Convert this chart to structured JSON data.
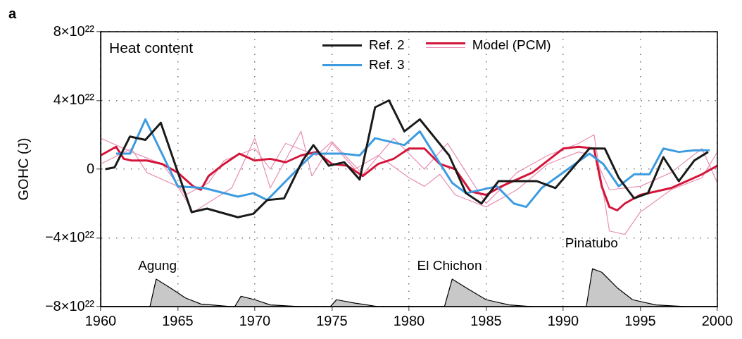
{
  "chart_data": {
    "type": "line",
    "ylabel": "GOHC (J)",
    "annotations": [
      "a",
      "Heat content",
      "Agung",
      "El Chichon",
      "Pinatubo"
    ],
    "xlim": [
      1960,
      2000
    ],
    "xticks": [
      1960,
      1965,
      1970,
      1975,
      1980,
      1985,
      1990,
      1995,
      2000
    ],
    "ylim": [
      -8e+22,
      8e+22
    ],
    "yticks": [
      {
        "value": -8e+22,
        "label": "−8×10²²"
      },
      {
        "value": -4e+22,
        "label": "−4×10²²"
      },
      {
        "value": 0,
        "label": "0"
      },
      {
        "value": 4e+22,
        "label": "4×10²²"
      },
      {
        "value": 8e+22,
        "label": "8×10²²"
      }
    ],
    "grid": true,
    "legend": "top",
    "marker": "none",
    "series": [
      {
        "type": "area",
        "color": "#c8c8c8",
        "x": [
          1960,
          1963.2,
          1963.6,
          1964.5,
          1965.5,
          1966.5,
          1968.5,
          1968.7,
          1969.1,
          1970,
          1971,
          1973,
          1974.9,
          1975.3,
          1976.5,
          1978,
          1982.3,
          1982.8,
          1983.7,
          1985,
          1986.5,
          1988,
          1991.5,
          1991.9,
          1992.5,
          1993.5,
          1994.5,
          1996,
          1998,
          2000
        ],
        "values": [
          -8e+22,
          -8e+22,
          -6.4e+22,
          -6.9e+22,
          -7.5e+22,
          -7.85e+22,
          -8e+22,
          -8e+22,
          -7.4e+22,
          -7.6e+22,
          -7.9e+22,
          -8e+22,
          -8e+22,
          -7.6e+22,
          -7.8e+22,
          -8e+22,
          -8e+22,
          -6.4e+22,
          -6.9e+22,
          -7.6e+22,
          -7.9e+22,
          -8e+22,
          -8e+22,
          -5.8e+22,
          -6e+22,
          -6.9e+22,
          -7.6e+22,
          -7.9e+22,
          -8e+22,
          -8e+22
        ]
      },
      {
        "type": "line",
        "color": "#e98fb4",
        "x": [
          1960,
          1962,
          1964,
          1965.5,
          1967,
          1968,
          1970,
          1971,
          1972,
          1974,
          1975,
          1977,
          1979,
          1981,
          1982.5,
          1984,
          1985,
          1987,
          1989,
          1991,
          1992,
          1993,
          1994,
          1995,
          1997,
          1999,
          2000
        ],
        "values": [
          1.8e+22,
          1e+22,
          3e+21,
          -1.5e+22,
          -8e+21,
          5e+21,
          1.2e+22,
          0,
          1.5e+22,
          8e+21,
          1.6e+22,
          -3e+21,
          1.8e+22,
          0,
          1.5e+22,
          -6e+21,
          -2e+22,
          -2e+21,
          8e+21,
          1.5e+22,
          2e+22,
          -3.6e+22,
          -3.8e+22,
          -2.5e+22,
          -1.2e+22,
          -5e+21,
          1e+22
        ]
      },
      {
        "type": "line",
        "color": "#e98fb4",
        "x": [
          1960,
          1962,
          1963,
          1965,
          1966,
          1968.5,
          1970,
          1971,
          1973,
          1973.7,
          1975,
          1976.5,
          1978,
          1980,
          1981,
          1982,
          1983,
          1985,
          1987,
          1989,
          1991,
          1992,
          1993,
          1995,
          1997,
          1999,
          2000
        ],
        "values": [
          3e+21,
          1.2e+22,
          -2e+21,
          -1e+22,
          -2.5e+22,
          -1.1e+22,
          1.8e+22,
          -1.1e+22,
          2.2e+22,
          -4e+21,
          1.5e+22,
          0,
          8e+21,
          -5e+21,
          -1e+22,
          -3e+21,
          -1.5e+22,
          -2.2e+22,
          -1.2e+22,
          3e+21,
          1e+22,
          8e+21,
          -1.2e+22,
          -1e+22,
          -2e+21,
          1.2e+22,
          -8e+21
        ]
      },
      {
        "type": "line",
        "name": "Model (PCM)",
        "color": "#d4153a",
        "x": [
          1960,
          1961,
          1961.5,
          1962,
          1963,
          1964,
          1965,
          1966,
          1966.5,
          1967,
          1968,
          1969,
          1970,
          1971,
          1972,
          1973,
          1974,
          1975,
          1976,
          1977,
          1978,
          1979,
          1980,
          1981,
          1982,
          1983,
          1984,
          1985,
          1986,
          1987,
          1988,
          1989,
          1990,
          1991,
          1992,
          1992.5,
          1993,
          1993.5,
          1994,
          1995,
          1996,
          1997,
          1998,
          1999,
          2000
        ],
        "values": [
          8e+21,
          1.3e+22,
          6e+21,
          5e+21,
          5e+21,
          3e+21,
          -2e+21,
          -1e+22,
          -1.2e+22,
          -4e+21,
          3e+21,
          9e+21,
          5e+21,
          6e+21,
          4e+21,
          8e+21,
          1e+22,
          3e+21,
          2e+21,
          -4e+21,
          3e+21,
          6e+21,
          1.2e+22,
          1.2e+22,
          3e+21,
          0,
          -1.3e+22,
          -1.5e+22,
          -1e+22,
          -6e+21,
          -2e+21,
          5e+21,
          1.2e+22,
          1.3e+22,
          1.2e+22,
          -1e+22,
          -2.2e+22,
          -2.4e+22,
          -2e+22,
          -1.5e+22,
          -1.3e+22,
          -1.1e+22,
          -7e+21,
          -3e+21,
          2e+21
        ]
      },
      {
        "type": "line",
        "name": "Ref. 3",
        "color": "#3d9be0",
        "x": [
          1961,
          1961.9,
          1962.9,
          1965,
          1966.7,
          1968.9,
          1969.9,
          1970.8,
          1973.1,
          1973.8,
          1975.7,
          1976.8,
          1977.8,
          1979.7,
          1980.7,
          1982.8,
          1983.7,
          1985.7,
          1986.8,
          1987.6,
          1988.6,
          1991.7,
          1992.6,
          1993.6,
          1994.6,
          1995.6,
          1996.5,
          1997.5,
          1998.5,
          1999.5
        ],
        "values": [
          9e+21,
          9e+21,
          2.9e+22,
          -1e+22,
          -1.1e+22,
          -1.6e+22,
          -1.4e+22,
          -1.8e+22,
          3e+21,
          9e+21,
          9e+21,
          8e+21,
          1.8e+22,
          1.4e+22,
          2.2e+22,
          -8e+21,
          -1.4e+22,
          -1e+22,
          -2e+22,
          -2.2e+22,
          -1.1e+22,
          9e+21,
          3e+21,
          -1e+22,
          -3e+21,
          -3e+21,
          1.2e+22,
          1e+22,
          1.1e+22,
          1.1e+22
        ]
      },
      {
        "type": "line",
        "name": "Ref. 2",
        "color": "#1a1a1a",
        "x": [
          1960.3,
          1960.9,
          1961.9,
          1962.9,
          1963.9,
          1965.9,
          1966.9,
          1968.9,
          1969.9,
          1970.8,
          1971.9,
          1973.1,
          1973.8,
          1974.8,
          1975.8,
          1976.8,
          1977.8,
          1978.7,
          1979.7,
          1980.7,
          1982.6,
          1983.7,
          1984.7,
          1985.8,
          1986.7,
          1988.3,
          1989.5,
          1991.7,
          1992.7,
          1993.6,
          1994.6,
          1995.5,
          1996.5,
          1997.5,
          1998.5,
          1999.4
        ],
        "values": [
          0,
          1e+21,
          1.9e+22,
          1.7e+22,
          2.7e+22,
          -2.5e+22,
          -2.3e+22,
          -2.8e+22,
          -2.6e+22,
          -1.8e+22,
          -1.7e+22,
          5e+21,
          1.4e+22,
          2e+21,
          4e+21,
          -6e+21,
          3.6e+22,
          4e+22,
          2.2e+22,
          2.9e+22,
          8e+21,
          -1.4e+22,
          -2e+22,
          -7e+21,
          -7e+21,
          -7e+21,
          -1.1e+22,
          1.2e+22,
          1.2e+22,
          -5e+21,
          -1.7e+22,
          -1.4e+22,
          7e+21,
          -7e+21,
          5e+21,
          1e+22
        ]
      }
    ]
  }
}
